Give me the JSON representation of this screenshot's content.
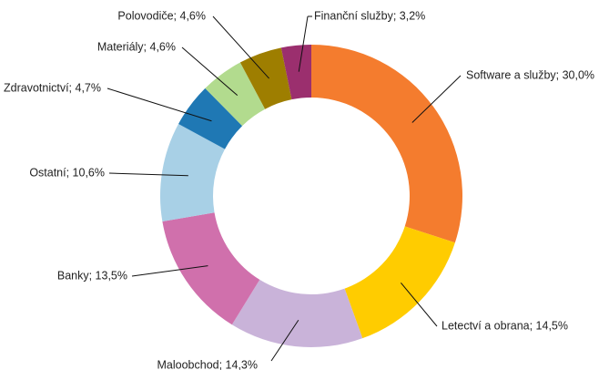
{
  "chart_data": {
    "type": "donut",
    "categories": [
      "Software a služby",
      "Letectví a obrana",
      "Maloobchod",
      "Banky",
      "Ostatní",
      "Zdravotnictví",
      "Materiály",
      "Polovodiče",
      "Finanční služby"
    ],
    "labels": [
      "Software a služby; 30,0%",
      "Letectví a obrana; 14,5%",
      "Maloobchod; 14,3%",
      "Banky; 13,5%",
      "Ostatní; 10,6%",
      "Zdravotnictví; 4,7%",
      "Materiály; 4,6%",
      "Polovodiče; 4,6%",
      "Finanční služby; 3,2%"
    ],
    "values": [
      30.0,
      14.5,
      14.3,
      13.5,
      10.6,
      4.7,
      4.6,
      4.6,
      3.2
    ],
    "colors": [
      "#f47c2e",
      "#ffcc00",
      "#c9b3d9",
      "#d070ac",
      "#a8d0e6",
      "#1f78b4",
      "#b2db8e",
      "#9e7e00",
      "#9b2f6e"
    ]
  }
}
